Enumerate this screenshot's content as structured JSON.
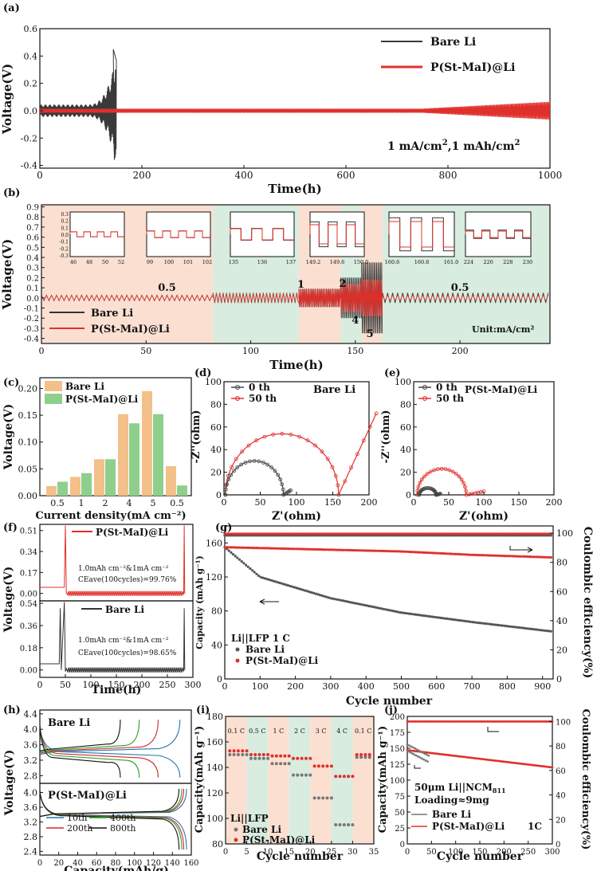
{
  "panels": [
    {
      "id": "a",
      "tag": "(a)",
      "type": "line",
      "xlabel": "Time(h)",
      "ylabel": "Voltage(V)",
      "xticks": [
        "0",
        "200",
        "400",
        "600",
        "800",
        "1000"
      ],
      "yticks": [
        "-0.4",
        "-0.2",
        "0.0",
        "0.2",
        "0.4",
        "0.6"
      ],
      "xlim": [
        0,
        1000
      ],
      "ylim": [
        -0.42,
        0.6
      ],
      "legend": [
        "Bare  Li",
        "P(St-MaI)@Li"
      ],
      "annotation": "1 mA/cm2,1 mAh/cm2",
      "series": [
        {
          "name": "Bare  Li",
          "color": "#3a3a3a",
          "fails_at_h": 150
        },
        {
          "name": "P(St-MaI)@Li",
          "color": "#e0302b",
          "runs_to_h": 1000
        }
      ]
    },
    {
      "id": "b",
      "tag": "(b)",
      "type": "line",
      "xlabel": "Time(h)",
      "ylabel": "Voltage(V)",
      "xticks": [
        "0",
        "50",
        "100",
        "150",
        "200"
      ],
      "yticks": [
        "-0.4",
        "-0.3",
        "-0.2",
        "-0.1",
        "0.0",
        "0.1",
        "0.2",
        "0.3",
        "0.4",
        "0.5",
        "0.6",
        "0.7",
        "0.8",
        "0.9"
      ],
      "xlim": [
        0,
        243
      ],
      "ylim": [
        -0.45,
        0.92
      ],
      "legend": [
        "Bare Li",
        "P(St-MaI)@Li"
      ],
      "unit": "Unit:mA/cm²",
      "rate_labels": [
        "0.5",
        "1",
        "2",
        "4",
        "5",
        "0.5"
      ],
      "inset_ticks": [
        [
          "46",
          "48",
          "50",
          "52"
        ],
        [
          "99",
          "100",
          "101",
          "102"
        ],
        [
          "135",
          "136",
          "137"
        ],
        [
          "149.2",
          "149.6",
          "150.0"
        ],
        [
          "160.6",
          "160.8",
          "161.0"
        ],
        [
          "224",
          "226",
          "228",
          "230"
        ]
      ],
      "inset_yticks": [
        "0.3",
        "0.2",
        "0.1",
        "0.0",
        "-0.1",
        "-0.2",
        "-0.3"
      ]
    },
    {
      "id": "c",
      "tag": "(c)",
      "type": "bar",
      "xlabel": "Current density(mA cm⁻²)",
      "ylabel": "Voltage(V)",
      "categories": [
        "0.5",
        "1",
        "2",
        "4",
        "5",
        "0.5"
      ],
      "series": [
        {
          "name": "Bare Li",
          "color": "#f3c08a",
          "values": [
            0.018,
            0.035,
            0.068,
            0.152,
            0.195,
            0.055
          ]
        },
        {
          "name": "P(St-MaI)@Li",
          "color": "#8fcf8c",
          "values": [
            0.026,
            0.042,
            0.068,
            0.135,
            0.152,
            0.019
          ]
        }
      ],
      "yticks": [
        "0.00",
        "0.05",
        "0.10",
        "0.15",
        "0.20"
      ],
      "ylim": [
        0,
        0.22
      ]
    },
    {
      "id": "d",
      "tag": "(d)",
      "type": "scatter",
      "xlabel": "Z'(ohm)",
      "ylabel": "-Z''(ohm)",
      "title": "Bare Li",
      "legend": [
        "0 th",
        "50 th"
      ],
      "xticks": [
        "0",
        "50",
        "100",
        "150",
        "200"
      ],
      "yticks": [
        "0",
        "20",
        "40",
        "60",
        "80",
        "100"
      ],
      "xlim": [
        0,
        200
      ],
      "ylim": [
        0,
        100
      ]
    },
    {
      "id": "e",
      "tag": "(e)",
      "type": "scatter",
      "xlabel": "Z'(ohm)",
      "ylabel": "-Z''(ohm)",
      "title": "P(St-MaI)@Li",
      "legend": [
        "0 th",
        "50 th"
      ],
      "xticks": [
        "0",
        "50",
        "100",
        "150",
        "200"
      ],
      "yticks": [
        "0",
        "20",
        "40",
        "60",
        "80",
        "100"
      ],
      "xlim": [
        0,
        200
      ],
      "ylim": [
        0,
        100
      ]
    },
    {
      "id": "f",
      "tag": "(f)",
      "type": "line",
      "xlabel": "Time(h)",
      "ylabel": "Voltage(V)",
      "xticks": [
        "0",
        "50",
        "100",
        "150",
        "200",
        "250",
        "300"
      ],
      "top": {
        "legend": "P(St-MaI)@Li",
        "yticks": [
          "0.00",
          "0.17",
          "0.34",
          "0.51"
        ],
        "note1": "1.0mAh cm⁻²&1mA cm⁻²",
        "note2": "CEave(100cycles)=99.76%"
      },
      "bottom": {
        "legend": "Bare Li",
        "yticks": [
          "0.00",
          "0.18",
          "0.36",
          "0.54"
        ],
        "note1": "1.0mAh cm⁻²&1mA cm⁻²",
        "note2": "CEave(100cycles)=98.65%"
      }
    },
    {
      "id": "g",
      "tag": "(g)",
      "type": "scatter",
      "xlabel": "Cycle number",
      "ylabel": "Capacity (mAh g⁻¹)",
      "ylabel2": "Coulombic efficiency(%)",
      "xticks": [
        "0",
        "100",
        "200",
        "300",
        "400",
        "500",
        "600",
        "700",
        "800",
        "900"
      ],
      "yticks": [
        "0",
        "40",
        "80",
        "120",
        "160"
      ],
      "yticks2": [
        "0",
        "20",
        "40",
        "60",
        "80",
        "100"
      ],
      "xlim": [
        0,
        930
      ],
      "ylim": [
        0,
        180
      ],
      "ylim2": [
        0,
        105
      ],
      "cell": "Li||LFP 1 C",
      "legend": [
        "Bare Li",
        "P(St-MaI)@Li"
      ],
      "capacity_bare": [
        [
          0,
          155
        ],
        [
          100,
          120
        ],
        [
          300,
          95
        ],
        [
          500,
          78
        ],
        [
          700,
          67
        ],
        [
          925,
          56
        ]
      ],
      "capacity_coated": [
        [
          0,
          155
        ],
        [
          200,
          153
        ],
        [
          500,
          150
        ],
        [
          700,
          146
        ],
        [
          925,
          143
        ]
      ]
    },
    {
      "id": "h",
      "tag": "(h)",
      "type": "line",
      "xlabel": "Capacity(mAh/g)",
      "ylabel": "Voltage(V)",
      "xticks": [
        "0",
        "20",
        "40",
        "60",
        "80",
        "100",
        "120",
        "140",
        "160"
      ],
      "top": {
        "label": "Bare Li",
        "yticks": [
          "2.8",
          "3.2",
          "3.6",
          "4.0",
          "4.4"
        ]
      },
      "bottom": {
        "label": "P(St-MaI)@Li",
        "yticks": [
          "2.4",
          "2.8",
          "3.2",
          "3.6",
          "4.0"
        ]
      },
      "legend": [
        "10th",
        "200th",
        "400th",
        "800th"
      ],
      "colors": [
        "#1f77b4",
        "#d62728",
        "#2ca02c",
        "#111111"
      ]
    },
    {
      "id": "i",
      "tag": "(i)",
      "type": "scatter",
      "xlabel": "Cycle number",
      "ylabel": "Capacity(mAh g⁻¹)",
      "xticks": [
        "0",
        "5",
        "10",
        "15",
        "20",
        "25",
        "30",
        "35"
      ],
      "yticks": [
        "80",
        "100",
        "120",
        "140",
        "160",
        "180"
      ],
      "xlim": [
        0,
        35
      ],
      "ylim": [
        80,
        180
      ],
      "rates": [
        "0.1 C",
        "0.5 C",
        "1 C",
        "2 C",
        "3 C",
        "4 C",
        "0.1 C"
      ],
      "cell": "Li||LFP",
      "legend": [
        "Bare Li",
        "P(St-MaI)@Li"
      ]
    },
    {
      "id": "j",
      "tag": "(j)",
      "type": "scatter",
      "xlabel": "Cycle number",
      "ylabel": "Capacity(mAh g⁻¹)",
      "ylabel2": "Coulombic efficiency(%)",
      "xticks": [
        "0",
        "50",
        "100",
        "150",
        "200",
        "250",
        "300"
      ],
      "yticks": [
        "0",
        "25",
        "50",
        "75",
        "100",
        "125",
        "150",
        "175",
        "200"
      ],
      "yticks2": [
        "0",
        "20",
        "40",
        "60",
        "80",
        "100"
      ],
      "xlim": [
        0,
        300
      ],
      "ylim": [
        0,
        200
      ],
      "cell": "50μm Li||NCM",
      "cell_sub": "811",
      "loading": "Loading≈9mg",
      "rate": "1C",
      "legend": [
        "Bare Li",
        "P(St-MaI)@Li"
      ]
    }
  ]
}
